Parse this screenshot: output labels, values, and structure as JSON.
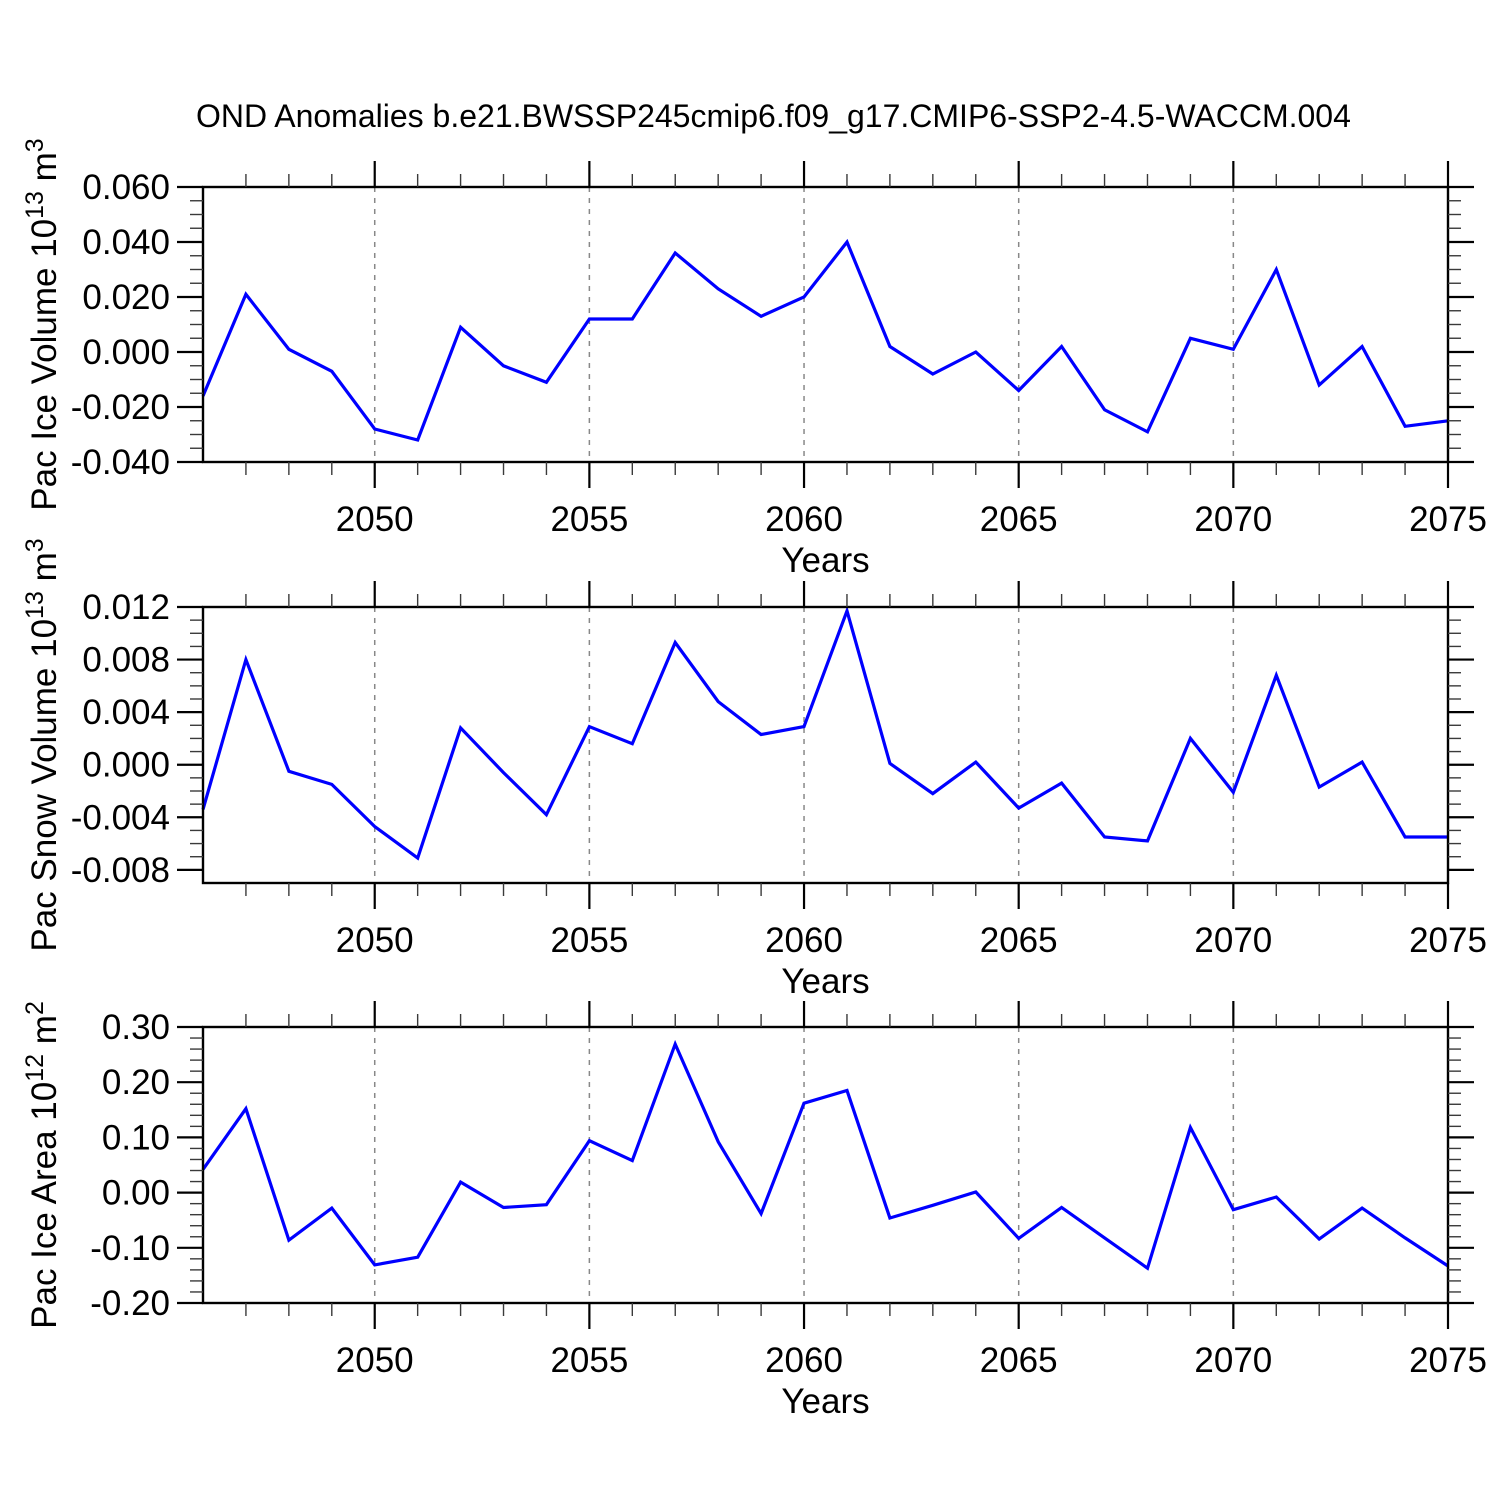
{
  "chart_data": {
    "type": "line",
    "title": "OND Anomalies b.e21.BWSSP245cmip6.f09_g17.CMIP6-SSP2-4.5-WACCM.004",
    "xlabel": "Years",
    "xlim": [
      2046,
      2075
    ],
    "x": [
      2046,
      2047,
      2048,
      2049,
      2050,
      2051,
      2052,
      2053,
      2054,
      2055,
      2056,
      2057,
      2058,
      2059,
      2060,
      2061,
      2062,
      2063,
      2064,
      2065,
      2066,
      2067,
      2068,
      2069,
      2070,
      2071,
      2072,
      2073,
      2074,
      2075
    ],
    "x_major_ticks": [
      2050,
      2055,
      2060,
      2065,
      2070,
      2075
    ],
    "x_major_labels": [
      "2050",
      "2055",
      "2060",
      "2065",
      "2070",
      "2075"
    ],
    "x_minor_step": 1,
    "x_gridlines": [
      2050,
      2055,
      2060,
      2065,
      2070
    ],
    "grid_style": "vertical-dashed",
    "legend": "none",
    "panels": [
      {
        "id": "pac-ice-volume",
        "ylabel_text": "Pac Ice Volume 10^13 m^3",
        "ylabel_parts": [
          [
            "Pac Ice Volume 10",
            false
          ],
          [
            "13",
            true
          ],
          [
            " m",
            false
          ],
          [
            "3",
            true
          ]
        ],
        "ylim": [
          -0.04,
          0.06
        ],
        "ytick_values": [
          0.06,
          0.04,
          0.02,
          0.0,
          -0.02,
          -0.04
        ],
        "ytick_labels": [
          "0.060",
          "0.040",
          "0.020",
          "0.000",
          "-0.020",
          "-0.040"
        ],
        "y_minor_step": 0.005,
        "values": [
          -0.016,
          0.021,
          0.001,
          -0.007,
          -0.028,
          -0.032,
          0.009,
          -0.005,
          -0.011,
          0.012,
          0.012,
          0.036,
          0.023,
          0.013,
          0.02,
          0.04,
          0.002,
          -0.008,
          0.0,
          -0.014,
          0.002,
          -0.021,
          -0.029,
          0.005,
          0.001,
          0.03,
          -0.012,
          0.002,
          -0.027,
          -0.025
        ]
      },
      {
        "id": "pac-snow-volume",
        "ylabel_text": "Pac Snow Volume 10^13 m^3",
        "ylabel_parts": [
          [
            "Pac Snow Volume 10",
            false
          ],
          [
            "13",
            true
          ],
          [
            " m",
            false
          ],
          [
            "3",
            true
          ]
        ],
        "ylim": [
          -0.009,
          0.012
        ],
        "ytick_values": [
          0.012,
          0.008,
          0.004,
          0.0,
          -0.004,
          -0.008
        ],
        "ytick_labels": [
          "0.012",
          "0.008",
          "0.004",
          "0.000",
          "-0.004",
          "-0.008"
        ],
        "y_minor_step": 0.001,
        "values": [
          -0.0034,
          0.008,
          -0.0005,
          -0.0015,
          -0.0047,
          -0.0071,
          0.0028,
          -0.0006,
          -0.0038,
          0.0029,
          0.0016,
          0.0093,
          0.0048,
          0.0023,
          0.0029,
          0.0117,
          0.0001,
          -0.0022,
          0.0002,
          -0.0033,
          -0.0014,
          -0.0055,
          -0.0058,
          0.002,
          -0.0021,
          0.0068,
          -0.0017,
          0.0002,
          -0.0055,
          -0.0055
        ]
      },
      {
        "id": "pac-ice-area",
        "ylabel_text": "Pac Ice Area 10^12 m^2",
        "ylabel_parts": [
          [
            "Pac Ice Area 10",
            false
          ],
          [
            "12",
            true
          ],
          [
            " m",
            false
          ],
          [
            "2",
            true
          ]
        ],
        "ylim": [
          -0.2,
          0.3
        ],
        "ytick_values": [
          0.3,
          0.2,
          0.1,
          0.0,
          -0.1,
          -0.2
        ],
        "ytick_labels": [
          "0.30",
          "0.20",
          "0.10",
          "0.00",
          "-0.10",
          "-0.20"
        ],
        "y_minor_step": 0.02,
        "values": [
          0.042,
          0.152,
          -0.086,
          -0.028,
          -0.131,
          -0.117,
          0.019,
          -0.027,
          -0.022,
          0.094,
          0.058,
          0.269,
          0.092,
          -0.038,
          0.162,
          0.185,
          -0.046,
          -0.023,
          0.001,
          -0.083,
          -0.027,
          -0.082,
          -0.137,
          0.118,
          -0.031,
          -0.008,
          -0.084,
          -0.028,
          -0.082,
          -0.133
        ]
      }
    ],
    "colors": {
      "line": "#0000ff",
      "axis": "#000000",
      "grid": "#888888",
      "text": "#000000",
      "background": "#ffffff"
    }
  }
}
